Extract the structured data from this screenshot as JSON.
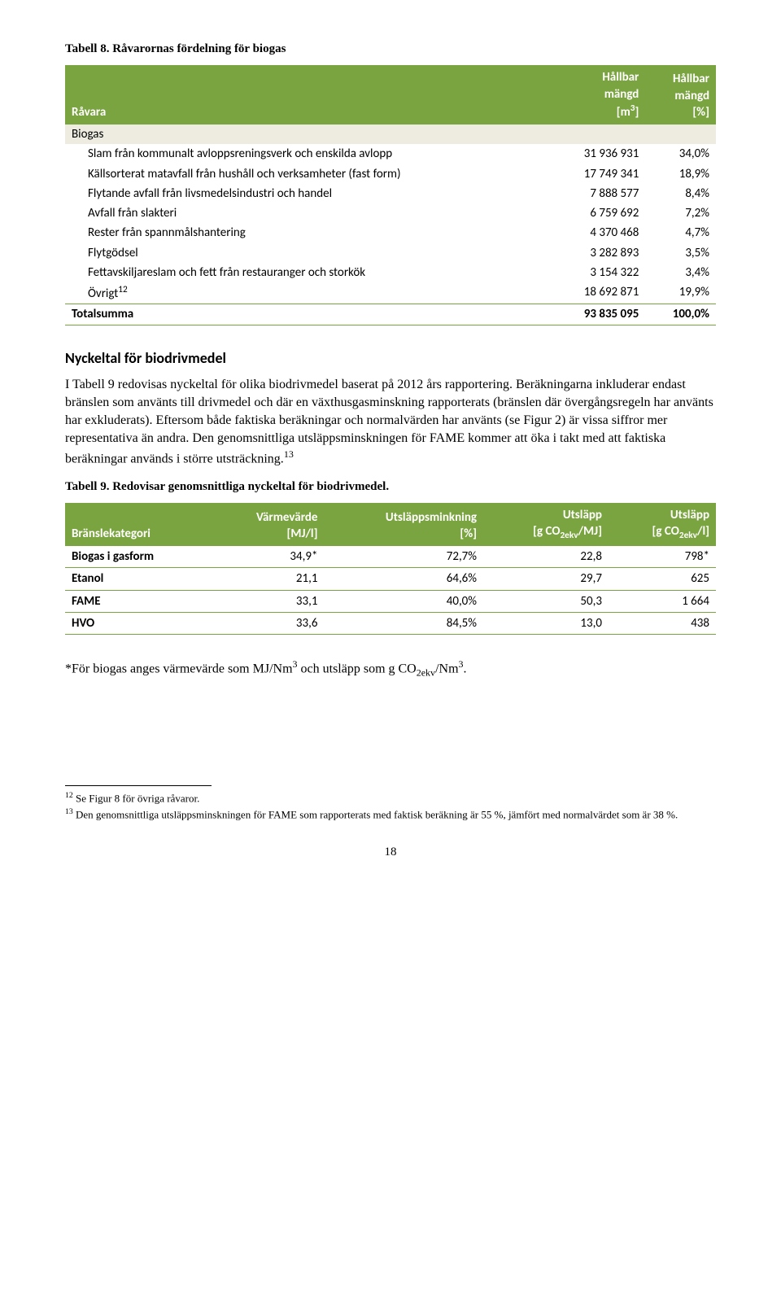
{
  "table8": {
    "caption": "Tabell 8. Råvarornas fördelning för biogas",
    "header": {
      "col1": "Råvara",
      "col2_line1": "Hållbar",
      "col2_line2": "mängd",
      "col2_line3": "[m³]",
      "col3_line1": "Hållbar",
      "col3_line2": "mängd",
      "col3_line3": "[%]"
    },
    "section": "Biogas",
    "rows": [
      {
        "label": "Slam från kommunalt avloppsreningsverk och enskilda avlopp",
        "v1": "31 936 931",
        "v2": "34,0%"
      },
      {
        "label": "Källsorterat matavfall från hushåll och verksamheter (fast form)",
        "v1": "17 749 341",
        "v2": "18,9%"
      },
      {
        "label": "Flytande avfall från livsmedelsindustri och handel",
        "v1": "7 888 577",
        "v2": "8,4%"
      },
      {
        "label": "Avfall från slakteri",
        "v1": "6 759 692",
        "v2": "7,2%"
      },
      {
        "label": "Rester från spannmålshantering",
        "v1": "4 370 468",
        "v2": "4,7%"
      },
      {
        "label": "Flytgödsel",
        "v1": "3 282 893",
        "v2": "3,5%"
      },
      {
        "label": "Fettavskiljareslam och fett från restauranger och storkök",
        "v1": "3 154 322",
        "v2": "3,4%"
      },
      {
        "label_html": "Övrigt¹²",
        "label": "Övrigt",
        "sup": "12",
        "v1": "18 692 871",
        "v2": "19,9%"
      }
    ],
    "total": {
      "label": "Totalsumma",
      "v1": "93 835 095",
      "v2": "100,0%"
    }
  },
  "heading": "Nyckeltal för biodrivmedel",
  "para": "I Tabell 9 redovisas nyckeltal för olika biodrivmedel baserat på 2012 års rapportering. Beräkningarna inkluderar endast bränslen som använts till drivmedel och där en växthusgasminskning rapporterats (bränslen där övergångsregeln har använts har exkluderats). Eftersom både faktiska beräkningar och normalvärden har använts (se Figur 2) är vissa siffror mer representativa än andra. Den genomsnittliga utsläppsminskningen för FAME kommer att öka i takt med att faktiska beräkningar används i större utsträckning.",
  "para_sup": "13",
  "table9": {
    "caption": "Tabell 9. Redovisar genomsnittliga nyckeltal för biodrivmedel.",
    "header": {
      "c1": "Bränslekategori",
      "c2_l1": "Värmevärde",
      "c2_l2": "[MJ/l]",
      "c3_l1": "Utsläppsminkning",
      "c3_l2": "[%]",
      "c4_l1": "Utsläpp",
      "c5_l1": "Utsläpp"
    },
    "rows": [
      {
        "c1": "Biogas i gasform",
        "c2": "34,9*",
        "c3": "72,7%",
        "c4": "22,8",
        "c5": "798*"
      },
      {
        "c1": "Etanol",
        "c2": "21,1",
        "c3": "64,6%",
        "c4": "29,7",
        "c5": "625"
      },
      {
        "c1": "FAME",
        "c2": "33,1",
        "c3": "40,0%",
        "c4": "50,3",
        "c5": "1 664"
      },
      {
        "c1": "HVO",
        "c2": "33,6",
        "c3": "84,5%",
        "c4": "13,0",
        "c5": "438"
      }
    ]
  },
  "post_table_note_pre": "*För biogas anges värmevärde som MJ/Nm",
  "post_table_note_mid": " och utsläpp som g CO",
  "post_table_note_end": "/Nm",
  "footnotes": {
    "f12_num": "12",
    "f12": " Se Figur 8 för övriga råvaror.",
    "f13_num": "13",
    "f13": " Den genomsnittliga utsläppsminskningen för FAME som rapporterats med faktisk beräkning är 55 %, jämfört med normalvärdet som är 38 %."
  },
  "pagenum": "18",
  "colors": {
    "header_bg": "#7aa43f",
    "section_bg": "#eeece1"
  }
}
